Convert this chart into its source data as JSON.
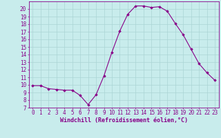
{
  "x": [
    0,
    1,
    2,
    3,
    4,
    5,
    6,
    7,
    8,
    9,
    10,
    11,
    12,
    13,
    14,
    15,
    16,
    17,
    18,
    19,
    20,
    21,
    22,
    23
  ],
  "y": [
    9.9,
    9.9,
    9.5,
    9.4,
    9.3,
    9.3,
    8.6,
    7.4,
    8.7,
    11.2,
    14.3,
    17.1,
    19.3,
    20.4,
    20.4,
    20.2,
    20.3,
    19.7,
    18.1,
    16.6,
    14.7,
    12.8,
    11.6,
    10.6
  ],
  "line_color": "#880088",
  "marker": "D",
  "marker_size": 1.8,
  "bg_color": "#c8ecec",
  "grid_color": "#aad4d4",
  "xlabel": "Windchill (Refroidissement éolien,°C)",
  "xlabel_fontsize": 6.0,
  "tick_fontsize": 5.5,
  "ylim": [
    7,
    21
  ],
  "yticks": [
    7,
    8,
    9,
    10,
    11,
    12,
    13,
    14,
    15,
    16,
    17,
    18,
    19,
    20
  ],
  "xlim": [
    -0.5,
    23.5
  ],
  "xticks": [
    0,
    1,
    2,
    3,
    4,
    5,
    6,
    7,
    8,
    9,
    10,
    11,
    12,
    13,
    14,
    15,
    16,
    17,
    18,
    19,
    20,
    21,
    22,
    23
  ]
}
